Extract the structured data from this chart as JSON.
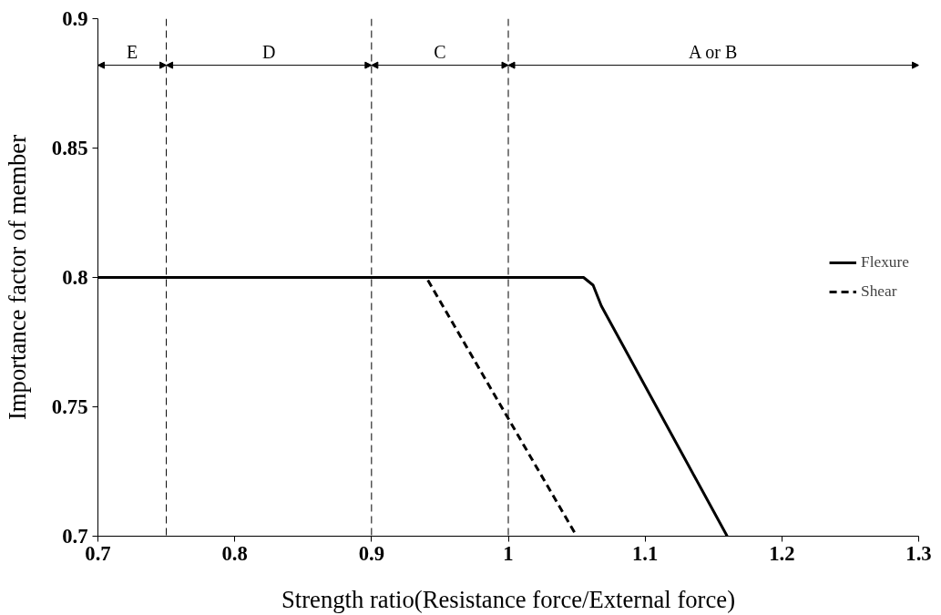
{
  "chart_data": {
    "type": "line",
    "xlabel": "Strength ratio(Resistance force/External force)",
    "ylabel": "Importance factor of member",
    "xlim": [
      0.7,
      1.3
    ],
    "xticks": [
      0.7,
      0.8,
      0.9,
      1,
      1.1,
      1.2,
      1.3
    ],
    "ylim": [
      0.7,
      0.9
    ],
    "yticks": [
      0.7,
      0.75,
      0.8,
      0.85,
      0.9
    ],
    "grid": false,
    "legend": "right",
    "marker": "none",
    "series": [
      {
        "name": "Flexure",
        "color": "#000000",
        "line_style": "solid",
        "x": [
          0.7,
          1.045,
          1.055,
          1.062,
          1.068,
          1.16
        ],
        "values": [
          0.8,
          0.8,
          0.8,
          0.797,
          0.789,
          0.7
        ]
      },
      {
        "name": "Shear",
        "color": "#000000",
        "line_style": "dashed",
        "x": [
          0.7,
          0.94,
          1.05
        ],
        "values": [
          0.8,
          0.8,
          0.7
        ]
      }
    ],
    "ref_lines": [
      {
        "axis": "x",
        "value": 0.75,
        "line_style": "dashed",
        "color": "#000000"
      },
      {
        "axis": "x",
        "value": 0.9,
        "line_style": "dashed",
        "color": "#000000"
      },
      {
        "axis": "x",
        "value": 1,
        "line_style": "dashed",
        "color": "#000000"
      }
    ],
    "annotations": [
      "E",
      "D",
      "C",
      "A or B"
    ]
  }
}
